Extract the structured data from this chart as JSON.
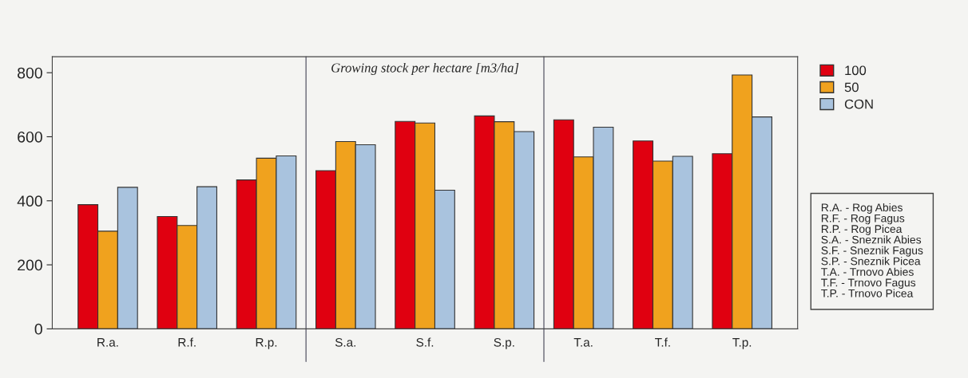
{
  "chart_data": {
    "type": "bar",
    "title": "Growing stock per hectare [m3/ha]",
    "categories": [
      "R.a.",
      "R.f.",
      "R.p.",
      "S.a.",
      "S.f.",
      "S.p.",
      "T.a.",
      "T.f.",
      "T.p."
    ],
    "series": [
      {
        "name": "100",
        "color": "#e00010",
        "values": [
          388,
          351,
          465,
          494,
          648,
          665,
          653,
          587,
          547
        ]
      },
      {
        "name": "50",
        "color": "#f0a21e",
        "values": [
          305,
          323,
          533,
          585,
          643,
          647,
          537,
          524,
          793
        ]
      },
      {
        "name": "CON",
        "color": "#a9c3de",
        "values": [
          442,
          444,
          540,
          575,
          433,
          616,
          630,
          539,
          662
        ]
      }
    ],
    "ylim": [
      0,
      850
    ],
    "yticks": [
      0,
      200,
      400,
      600,
      800
    ],
    "grid": false,
    "legend": "top right",
    "annotations": [
      "R.A. - Rog Abies\nR.F. - Rog Fagus\nR.P. - Rog Picea\nS.A. - Sneznik Abies\nS.F. - Sneznik Fagus\nS.P. - Sneznik Picea\nT.A. - Trnovo Abies\nT.F. - Trnovo Fagus\nT.P. - Trnovo Picea"
    ]
  }
}
